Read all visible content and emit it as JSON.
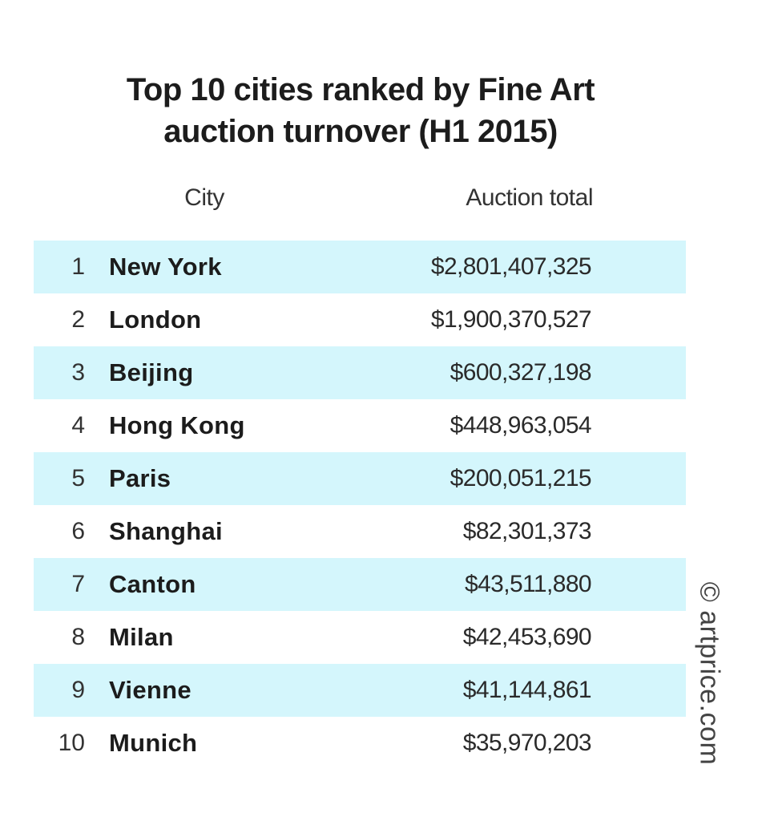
{
  "chart_data": {
    "type": "table",
    "title": "Top 10 cities ranked by Fine Art auction turnover (H1 2015)",
    "title_lines": [
      "Top 10 cities ranked by Fine Art",
      "auction turnover (H1 2015)"
    ],
    "columns": [
      "City",
      "Auction total"
    ],
    "rows": [
      {
        "rank": "1",
        "city": "New York",
        "total": "$2,801,407,325",
        "value": 2801407325
      },
      {
        "rank": "2",
        "city": "London",
        "total": "$1,900,370,527",
        "value": 1900370527
      },
      {
        "rank": "3",
        "city": "Beijing",
        "total": "$600,327,198",
        "value": 600327198
      },
      {
        "rank": "4",
        "city": "Hong Kong",
        "total": "$448,963,054",
        "value": 448963054
      },
      {
        "rank": "5",
        "city": "Paris",
        "total": "$200,051,215",
        "value": 200051215
      },
      {
        "rank": "6",
        "city": "Shanghai",
        "total": "$82,301,373",
        "value": 82301373
      },
      {
        "rank": "7",
        "city": "Canton",
        "total": "$43,511,880",
        "value": 43511880
      },
      {
        "rank": "8",
        "city": "Milan",
        "total": "$42,453,690",
        "value": 42453690
      },
      {
        "rank": "9",
        "city": "Vienne",
        "total": "$41,144,861",
        "value": 41144861
      },
      {
        "rank": "10",
        "city": "Munich",
        "total": "$35,970,203",
        "value": 35970203
      }
    ],
    "source": "© artprice.com"
  },
  "colors": {
    "row_shade": "#d4f6fc",
    "text": "#1c1c1c"
  }
}
